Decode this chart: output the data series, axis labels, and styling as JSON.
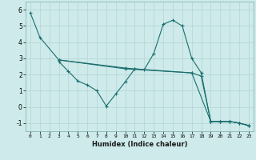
{
  "xlabel": "Humidex (Indice chaleur)",
  "background_color": "#ceeaea",
  "grid_color": "#b8d8d8",
  "line_color": "#1a6e6e",
  "ylim": [
    -1.5,
    6.5
  ],
  "xlim": [
    -0.5,
    23.5
  ],
  "yticks": [
    -1,
    0,
    1,
    2,
    3,
    4,
    5,
    6
  ],
  "xticks": [
    0,
    1,
    2,
    3,
    4,
    5,
    6,
    7,
    8,
    9,
    10,
    11,
    12,
    13,
    14,
    15,
    16,
    17,
    18,
    19,
    20,
    21,
    22,
    23
  ],
  "lines": [
    {
      "x": [
        0,
        1,
        3,
        10,
        11,
        12,
        13,
        14,
        15,
        16,
        17,
        18,
        19,
        20,
        21,
        22,
        23
      ],
      "y": [
        5.8,
        4.3,
        2.9,
        2.4,
        2.35,
        2.3,
        3.3,
        5.1,
        5.35,
        5.0,
        3.0,
        2.1,
        -0.9,
        -0.9,
        -0.9,
        -1.0,
        -1.15
      ]
    },
    {
      "x": [
        3,
        4,
        5,
        6,
        7,
        8,
        9,
        10,
        11,
        17,
        18,
        19,
        20,
        21,
        22,
        23
      ],
      "y": [
        2.8,
        2.2,
        1.6,
        1.35,
        1.0,
        0.05,
        0.8,
        1.55,
        2.35,
        2.1,
        1.9,
        -0.9,
        -0.9,
        -0.9,
        -1.0,
        -1.15
      ]
    },
    {
      "x": [
        3,
        10,
        17,
        19,
        20,
        21,
        22,
        23
      ],
      "y": [
        2.9,
        2.35,
        2.1,
        -0.9,
        -0.9,
        -0.9,
        -1.0,
        -1.15
      ]
    }
  ]
}
